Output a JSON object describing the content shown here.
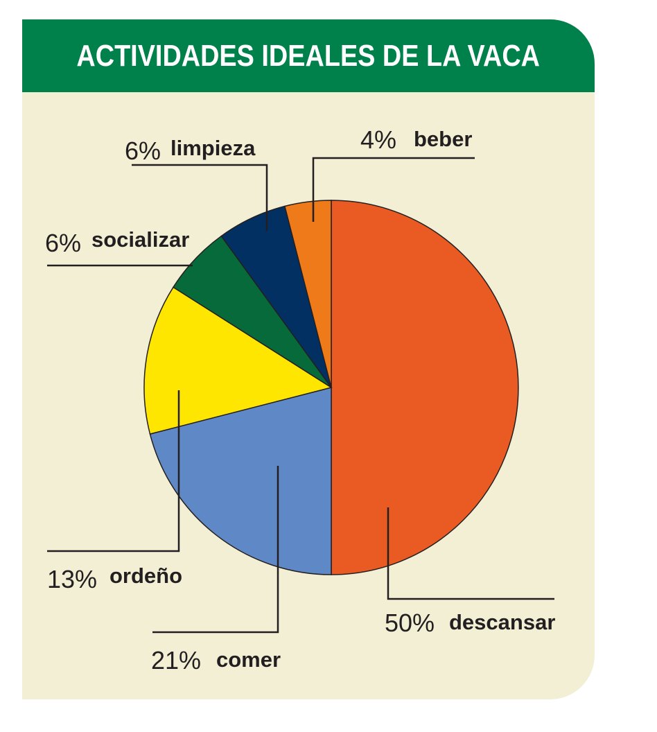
{
  "header": {
    "title": "ACTIVIDADES IDEALES DE LA VACA"
  },
  "colors": {
    "header_bg": "#00804a",
    "card_bg": "#f2efd5",
    "descansar": "#e95b23",
    "comer": "#5f89c6",
    "ordeno": "#ffe600",
    "socializar": "#076a3b",
    "limpieza": "#033062",
    "beber": "#ee7a1a"
  },
  "chart_data": {
    "type": "pie",
    "title": "ACTIVIDADES IDEALES DE LA VACA",
    "slices": [
      {
        "key": "descansar",
        "percent_label": "50%",
        "label": "descansar",
        "value": 50,
        "color": "#e95b23"
      },
      {
        "key": "comer",
        "percent_label": "21%",
        "label": "comer",
        "value": 21,
        "color": "#5f89c6"
      },
      {
        "key": "ordeno",
        "percent_label": "13%",
        "label": "ordeño",
        "value": 13,
        "color": "#ffe600"
      },
      {
        "key": "socializar",
        "percent_label": "6%",
        "label": "socializar",
        "value": 6,
        "color": "#076a3b"
      },
      {
        "key": "limpieza",
        "percent_label": "6%",
        "label": "limpieza",
        "value": 6,
        "color": "#033062"
      },
      {
        "key": "beber",
        "percent_label": "4%",
        "label": "beber",
        "value": 4,
        "color": "#ee7a1a"
      }
    ]
  }
}
